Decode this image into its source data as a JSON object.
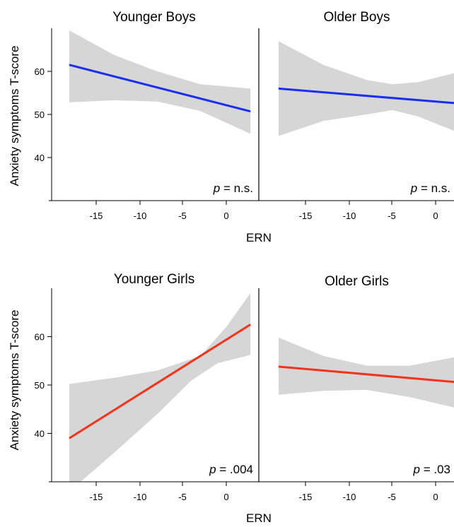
{
  "chart_data": {
    "type": "line",
    "shared_ylabel": "Anxiety symptoms T-score",
    "shared_xlabel": "ERN",
    "xlim": [
      -19,
      3
    ],
    "ylim": [
      30,
      70
    ],
    "xticks": [
      -15,
      -10,
      -5,
      0
    ],
    "yticks": [
      40,
      50,
      60
    ],
    "grid": false,
    "panels": [
      {
        "title": "Younger Boys",
        "p_prefix": "p",
        "p_value": " = n.s.",
        "line_color": "#1a2ef0",
        "line": {
          "x": [
            -18.2,
            2.8
          ],
          "y": [
            61.5,
            50.7
          ]
        },
        "band_upper": {
          "x": [
            -18.2,
            -13,
            -8,
            -3,
            2.8
          ],
          "y": [
            69.5,
            63.8,
            60.0,
            57.0,
            56.0
          ]
        },
        "band_lower": {
          "x": [
            -18.2,
            -13,
            -8,
            -3,
            2.8
          ],
          "y": [
            52.8,
            53.3,
            53.0,
            50.8,
            45.5
          ]
        }
      },
      {
        "title": "Older Boys",
        "p_prefix": "p",
        "p_value": " = n.s.",
        "line_color": "#1a2ef0",
        "line": {
          "x": [
            -18.2,
            3
          ],
          "y": [
            56.0,
            52.5
          ]
        },
        "band_upper": {
          "x": [
            -18.2,
            -13,
            -8,
            -5,
            -2,
            3
          ],
          "y": [
            67.0,
            61.5,
            58.0,
            57.0,
            57.5,
            60.0
          ]
        },
        "band_lower": {
          "x": [
            -18.2,
            -13,
            -8,
            -5,
            -2,
            3
          ],
          "y": [
            45.0,
            48.5,
            50.0,
            51.0,
            49.5,
            45.5
          ]
        }
      },
      {
        "title": "Younger Girls",
        "p_prefix": "p",
        "p_value": " = .004",
        "line_color": "#f2321a",
        "line": {
          "x": [
            -18.2,
            2.8
          ],
          "y": [
            39.0,
            62.5
          ]
        },
        "band_upper": {
          "x": [
            -18.2,
            -13,
            -8,
            -3,
            0,
            2.8
          ],
          "y": [
            50.2,
            51.5,
            53.0,
            56.0,
            62.0,
            69.0
          ]
        },
        "band_lower": {
          "x": [
            -18.2,
            -13,
            -8,
            -4,
            -1,
            2.8
          ],
          "y": [
            28.0,
            36.0,
            44.0,
            51.0,
            54.5,
            56.2
          ]
        }
      },
      {
        "title": "Older Girls",
        "p_prefix": "p",
        "p_value": " = .03",
        "line_color": "#f2321a",
        "line": {
          "x": [
            -18.2,
            3
          ],
          "y": [
            53.8,
            50.5
          ]
        },
        "band_upper": {
          "x": [
            -18.2,
            -13,
            -8,
            -3,
            3
          ],
          "y": [
            59.8,
            56.0,
            54.0,
            54.0,
            56.0
          ]
        },
        "band_lower": {
          "x": [
            -18.2,
            -13,
            -8,
            -3,
            3
          ],
          "y": [
            48.0,
            48.8,
            49.0,
            47.5,
            45.0
          ]
        }
      }
    ]
  }
}
